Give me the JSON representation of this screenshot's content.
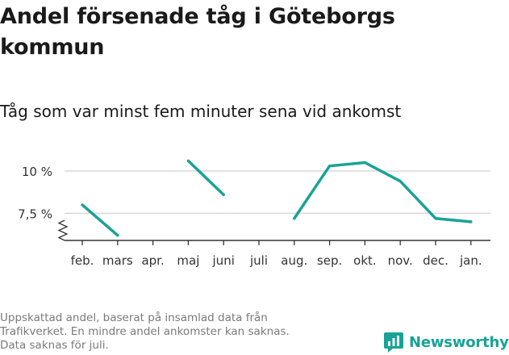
{
  "title": "Andel försenade tåg i Göteborgs kommun",
  "subtitle": "Tåg som var minst fem minuter sena vid ankomst",
  "footnote": [
    "Uppskattad andel, baserat på insamlad data från",
    "Trafikverket. En mindre andel ankomster kan saknas.",
    "Data saknas för juli."
  ],
  "brand": "Newsworthy",
  "colors": {
    "line": "#1aa296",
    "grid": "#d9d9d9",
    "axis": "#333333",
    "brand": "#17a398"
  },
  "chart_data": {
    "type": "line",
    "categories": [
      "feb.",
      "mars",
      "apr.",
      "maj",
      "juni",
      "juli",
      "aug.",
      "sep.",
      "okt.",
      "nov.",
      "dec.",
      "jan."
    ],
    "series": [
      {
        "values": [
          8.0,
          6.2,
          null,
          10.6,
          8.6,
          null,
          7.2,
          10.3,
          10.5,
          9.4,
          7.2,
          7.0
        ]
      }
    ],
    "y_ticks": [
      7.5,
      10
    ],
    "y_tick_labels": [
      "7,5 %",
      "10 %"
    ],
    "ylim": [
      5.9,
      11.0
    ],
    "y_axis_break": true,
    "grid": true,
    "legend": "none"
  }
}
